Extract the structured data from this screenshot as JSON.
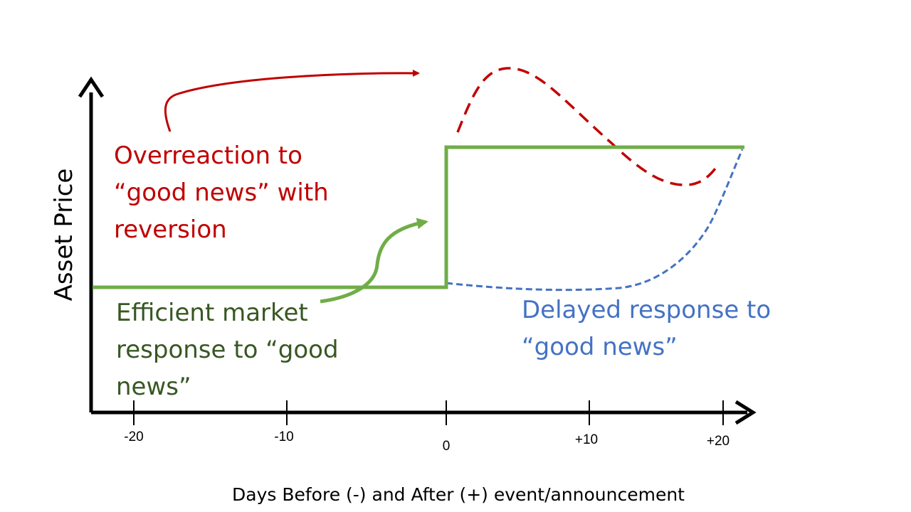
{
  "y_axis_label": "Asset Price",
  "x_axis_label": "Days Before (-) and After (+) event/announcement",
  "x_ticks": [
    "-20",
    "-10",
    "0",
    "+10",
    "+20"
  ],
  "annotations": {
    "overreaction": [
      "Overreaction to",
      "“good news” with",
      "reversion"
    ],
    "efficient": [
      "Efficient market",
      "response to “good",
      "news”"
    ],
    "delayed": [
      "Delayed response to",
      "“good news”"
    ]
  },
  "colors": {
    "efficient": "#70ad47",
    "efficient_text": "#385723",
    "overreaction": "#c00000",
    "delayed": "#4472c4",
    "axis": "#000000"
  }
}
